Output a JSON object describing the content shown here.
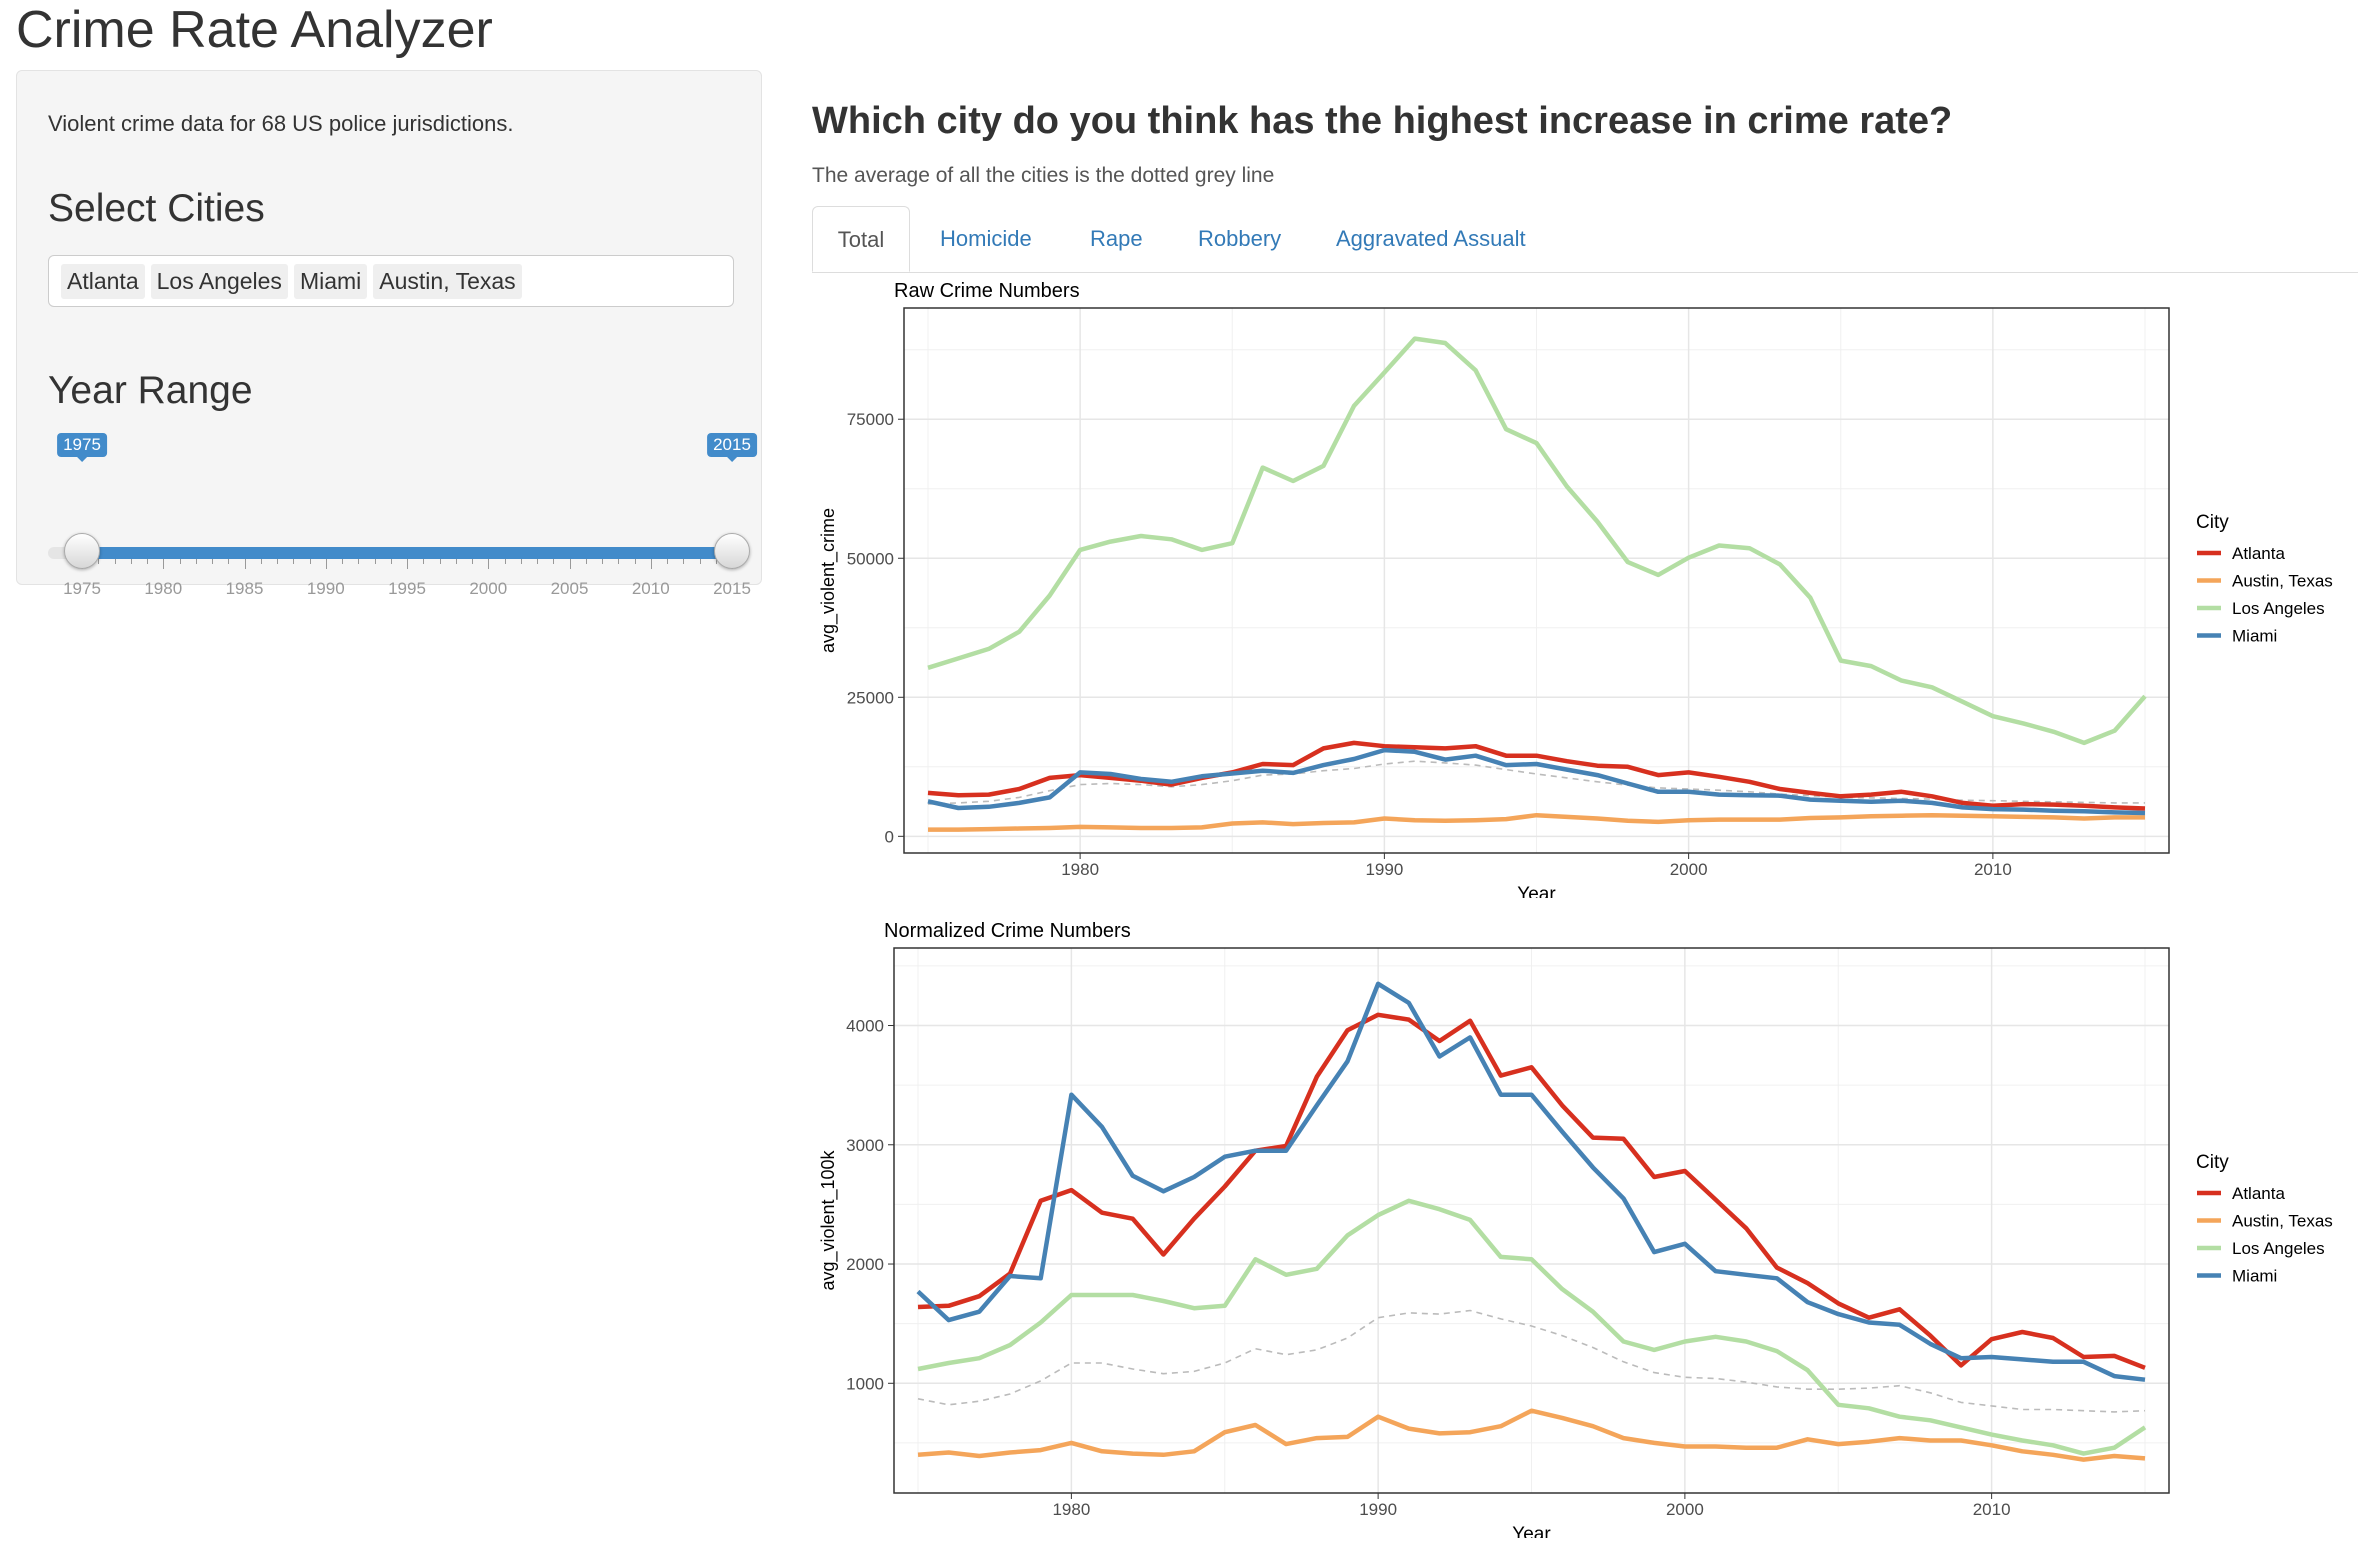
{
  "app": {
    "title": "Crime Rate Analyzer"
  },
  "sidebar": {
    "description": "Violent crime data for 68 US police jurisdictions.",
    "cities_heading": "Select Cities",
    "selected_cities": [
      "Atlanta",
      "Los Angeles",
      "Miami",
      "Austin, Texas"
    ],
    "year_heading": "Year Range",
    "slider": {
      "min": 1975,
      "max": 2015,
      "from": 1975,
      "to": 2015,
      "from_label": "1975",
      "to_label": "2015",
      "tick_labels": [
        "1975",
        "1980",
        "1985",
        "1990",
        "1995",
        "2000",
        "2005",
        "2010",
        "2015"
      ]
    }
  },
  "main": {
    "question": "Which city do you think has the highest increase in crime rate?",
    "subtitle": "The average of all the cities is the dotted grey line",
    "tabs": [
      {
        "label": "Total",
        "active": true
      },
      {
        "label": "Homicide",
        "active": false
      },
      {
        "label": "Rape",
        "active": false
      },
      {
        "label": "Robbery",
        "active": false
      },
      {
        "label": "Aggravated Assualt",
        "active": false
      }
    ]
  },
  "colors": {
    "Atlanta": "#d7301f",
    "Austin, Texas": "#f4a55a",
    "Los Angeles": "#b3dea3",
    "Miami": "#4682b4",
    "Average": "#bbbbbb",
    "accent": "#428bca"
  },
  "chart_data": [
    {
      "type": "line",
      "title": "Raw Crime Numbers",
      "xlabel": "Year",
      "ylabel": "avg_violent_crime",
      "xlim": [
        1975,
        2015
      ],
      "ylim": [
        -3000,
        95000
      ],
      "xticks": [
        1980,
        1990,
        2000,
        2010
      ],
      "yticks": [
        0,
        25000,
        50000,
        75000
      ],
      "grid": true,
      "legend_title": "City",
      "legend_position": "right",
      "x": [
        1975,
        1976,
        1977,
        1978,
        1979,
        1980,
        1981,
        1982,
        1983,
        1984,
        1985,
        1986,
        1987,
        1988,
        1989,
        1990,
        1991,
        1992,
        1993,
        1994,
        1995,
        1996,
        1997,
        1998,
        1999,
        2000,
        2001,
        2002,
        2003,
        2004,
        2005,
        2006,
        2007,
        2008,
        2009,
        2010,
        2011,
        2012,
        2013,
        2014,
        2015
      ],
      "series": [
        {
          "name": "Atlanta",
          "values": [
            7800,
            7400,
            7500,
            8500,
            10500,
            11000,
            10500,
            10000,
            9300,
            10500,
            11500,
            13000,
            12800,
            15800,
            16800,
            16200,
            16000,
            15800,
            16200,
            14500,
            14500,
            13500,
            12700,
            12500,
            11000,
            11500,
            10700,
            9800,
            8500,
            7800,
            7200,
            7500,
            8000,
            7200,
            6000,
            5500,
            5800,
            5700,
            5500,
            5200,
            5000
          ]
        },
        {
          "name": "Austin, Texas",
          "values": [
            1200,
            1200,
            1300,
            1400,
            1500,
            1700,
            1600,
            1500,
            1500,
            1600,
            2300,
            2500,
            2200,
            2400,
            2500,
            3200,
            2900,
            2800,
            2900,
            3100,
            3800,
            3500,
            3200,
            2800,
            2600,
            2900,
            3000,
            3000,
            3000,
            3300,
            3400,
            3600,
            3700,
            3800,
            3700,
            3600,
            3500,
            3400,
            3200,
            3400,
            3400
          ]
        },
        {
          "name": "Los Angeles",
          "values": [
            30300,
            32000,
            33700,
            36800,
            43300,
            51500,
            53000,
            54000,
            53400,
            51500,
            52700,
            66300,
            63900,
            66600,
            77400,
            83400,
            89500,
            88700,
            83800,
            73200,
            70700,
            62900,
            56600,
            49300,
            47000,
            50100,
            52300,
            51800,
            48900,
            42900,
            31600,
            30600,
            28000,
            26800,
            24200,
            21600,
            20300,
            18800,
            16800,
            19000,
            25200
          ]
        },
        {
          "name": "Miami",
          "values": [
            6300,
            5100,
            5300,
            6000,
            7000,
            11500,
            11200,
            10300,
            9800,
            10800,
            11300,
            11800,
            11400,
            12800,
            13900,
            15500,
            15200,
            13800,
            14500,
            12800,
            13000,
            12000,
            11000,
            9500,
            8000,
            8000,
            7500,
            7400,
            7300,
            6600,
            6400,
            6200,
            6400,
            6000,
            5200,
            4900,
            4800,
            4600,
            4500,
            4300,
            4200
          ]
        },
        {
          "name": "Average",
          "dashed": true,
          "values": [
            5800,
            6000,
            6300,
            7000,
            8200,
            9300,
            9500,
            9300,
            8900,
            9300,
            10000,
            11000,
            11200,
            11800,
            12200,
            13000,
            13500,
            13200,
            12800,
            12000,
            11200,
            10500,
            9800,
            9200,
            8700,
            8500,
            8300,
            8000,
            7600,
            7300,
            7000,
            6900,
            6800,
            6700,
            6500,
            6400,
            6300,
            6200,
            6100,
            6000,
            6000
          ]
        }
      ]
    },
    {
      "type": "line",
      "title": "Normalized Crime Numbers",
      "xlabel": "Year",
      "ylabel": "avg_violent_100k",
      "xlim": [
        1975,
        2015
      ],
      "ylim": [
        80,
        4650
      ],
      "xticks": [
        1980,
        1990,
        2000,
        2010
      ],
      "yticks": [
        1000,
        2000,
        3000,
        4000
      ],
      "grid": true,
      "legend_title": "City",
      "legend_position": "right",
      "x": [
        1975,
        1976,
        1977,
        1978,
        1979,
        1980,
        1981,
        1982,
        1983,
        1984,
        1985,
        1986,
        1987,
        1988,
        1989,
        1990,
        1991,
        1992,
        1993,
        1994,
        1995,
        1996,
        1997,
        1998,
        1999,
        2000,
        2001,
        2002,
        2003,
        2004,
        2005,
        2006,
        2007,
        2008,
        2009,
        2010,
        2011,
        2012,
        2013,
        2014,
        2015
      ],
      "series": [
        {
          "name": "Atlanta",
          "values": [
            1640,
            1650,
            1730,
            1920,
            2530,
            2620,
            2430,
            2380,
            2080,
            2380,
            2650,
            2950,
            2990,
            3570,
            3960,
            4090,
            4050,
            3870,
            4040,
            3580,
            3650,
            3330,
            3060,
            3050,
            2730,
            2780,
            2540,
            2300,
            1970,
            1840,
            1670,
            1550,
            1620,
            1400,
            1150,
            1370,
            1430,
            1380,
            1220,
            1230,
            1130
          ]
        },
        {
          "name": "Austin, Texas",
          "values": [
            400,
            420,
            390,
            420,
            440,
            500,
            430,
            410,
            400,
            430,
            590,
            650,
            490,
            540,
            550,
            720,
            620,
            580,
            590,
            640,
            770,
            710,
            640,
            540,
            500,
            470,
            470,
            460,
            460,
            530,
            490,
            510,
            540,
            520,
            520,
            480,
            430,
            400,
            360,
            390,
            370
          ]
        },
        {
          "name": "Los Angeles",
          "values": [
            1120,
            1170,
            1210,
            1320,
            1510,
            1740,
            1740,
            1740,
            1690,
            1630,
            1650,
            2040,
            1910,
            1960,
            2240,
            2410,
            2530,
            2460,
            2370,
            2060,
            2040,
            1790,
            1600,
            1350,
            1280,
            1350,
            1390,
            1350,
            1270,
            1110,
            820,
            790,
            720,
            690,
            630,
            570,
            520,
            480,
            410,
            460,
            630
          ]
        },
        {
          "name": "Miami",
          "values": [
            1770,
            1530,
            1600,
            1900,
            1880,
            3420,
            3150,
            2740,
            2610,
            2730,
            2900,
            2950,
            2950,
            3330,
            3700,
            4350,
            4190,
            3740,
            3900,
            3420,
            3420,
            3110,
            2810,
            2550,
            2100,
            2170,
            1940,
            1910,
            1880,
            1680,
            1580,
            1510,
            1490,
            1330,
            1210,
            1220,
            1200,
            1180,
            1180,
            1060,
            1030
          ]
        },
        {
          "name": "Average",
          "dashed": true,
          "values": [
            870,
            820,
            850,
            910,
            1020,
            1170,
            1170,
            1120,
            1080,
            1100,
            1170,
            1290,
            1240,
            1280,
            1380,
            1550,
            1590,
            1580,
            1610,
            1540,
            1480,
            1400,
            1300,
            1180,
            1090,
            1050,
            1040,
            1010,
            970,
            950,
            950,
            960,
            980,
            920,
            840,
            810,
            780,
            780,
            770,
            760,
            770
          ]
        }
      ]
    }
  ]
}
